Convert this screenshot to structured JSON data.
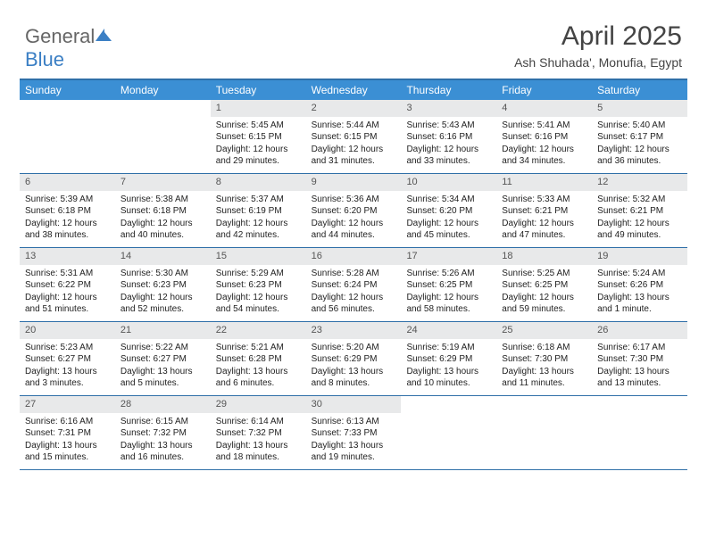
{
  "logo": {
    "part1": "General",
    "part2": "Blue"
  },
  "title": "April 2025",
  "subtitle": "Ash Shuhada', Monufia, Egypt",
  "colors": {
    "header_bg": "#3b8fd4",
    "header_text": "#ffffff",
    "border": "#2f6fa8",
    "daynum_bg": "#e8e9ea",
    "logo_blue": "#3b7fc4"
  },
  "day_headers": [
    "Sunday",
    "Monday",
    "Tuesday",
    "Wednesday",
    "Thursday",
    "Friday",
    "Saturday"
  ],
  "weeks": [
    [
      {
        "num": "",
        "lines": []
      },
      {
        "num": "",
        "lines": []
      },
      {
        "num": "1",
        "lines": [
          "Sunrise: 5:45 AM",
          "Sunset: 6:15 PM",
          "Daylight: 12 hours and 29 minutes."
        ]
      },
      {
        "num": "2",
        "lines": [
          "Sunrise: 5:44 AM",
          "Sunset: 6:15 PM",
          "Daylight: 12 hours and 31 minutes."
        ]
      },
      {
        "num": "3",
        "lines": [
          "Sunrise: 5:43 AM",
          "Sunset: 6:16 PM",
          "Daylight: 12 hours and 33 minutes."
        ]
      },
      {
        "num": "4",
        "lines": [
          "Sunrise: 5:41 AM",
          "Sunset: 6:16 PM",
          "Daylight: 12 hours and 34 minutes."
        ]
      },
      {
        "num": "5",
        "lines": [
          "Sunrise: 5:40 AM",
          "Sunset: 6:17 PM",
          "Daylight: 12 hours and 36 minutes."
        ]
      }
    ],
    [
      {
        "num": "6",
        "lines": [
          "Sunrise: 5:39 AM",
          "Sunset: 6:18 PM",
          "Daylight: 12 hours and 38 minutes."
        ]
      },
      {
        "num": "7",
        "lines": [
          "Sunrise: 5:38 AM",
          "Sunset: 6:18 PM",
          "Daylight: 12 hours and 40 minutes."
        ]
      },
      {
        "num": "8",
        "lines": [
          "Sunrise: 5:37 AM",
          "Sunset: 6:19 PM",
          "Daylight: 12 hours and 42 minutes."
        ]
      },
      {
        "num": "9",
        "lines": [
          "Sunrise: 5:36 AM",
          "Sunset: 6:20 PM",
          "Daylight: 12 hours and 44 minutes."
        ]
      },
      {
        "num": "10",
        "lines": [
          "Sunrise: 5:34 AM",
          "Sunset: 6:20 PM",
          "Daylight: 12 hours and 45 minutes."
        ]
      },
      {
        "num": "11",
        "lines": [
          "Sunrise: 5:33 AM",
          "Sunset: 6:21 PM",
          "Daylight: 12 hours and 47 minutes."
        ]
      },
      {
        "num": "12",
        "lines": [
          "Sunrise: 5:32 AM",
          "Sunset: 6:21 PM",
          "Daylight: 12 hours and 49 minutes."
        ]
      }
    ],
    [
      {
        "num": "13",
        "lines": [
          "Sunrise: 5:31 AM",
          "Sunset: 6:22 PM",
          "Daylight: 12 hours and 51 minutes."
        ]
      },
      {
        "num": "14",
        "lines": [
          "Sunrise: 5:30 AM",
          "Sunset: 6:23 PM",
          "Daylight: 12 hours and 52 minutes."
        ]
      },
      {
        "num": "15",
        "lines": [
          "Sunrise: 5:29 AM",
          "Sunset: 6:23 PM",
          "Daylight: 12 hours and 54 minutes."
        ]
      },
      {
        "num": "16",
        "lines": [
          "Sunrise: 5:28 AM",
          "Sunset: 6:24 PM",
          "Daylight: 12 hours and 56 minutes."
        ]
      },
      {
        "num": "17",
        "lines": [
          "Sunrise: 5:26 AM",
          "Sunset: 6:25 PM",
          "Daylight: 12 hours and 58 minutes."
        ]
      },
      {
        "num": "18",
        "lines": [
          "Sunrise: 5:25 AM",
          "Sunset: 6:25 PM",
          "Daylight: 12 hours and 59 minutes."
        ]
      },
      {
        "num": "19",
        "lines": [
          "Sunrise: 5:24 AM",
          "Sunset: 6:26 PM",
          "Daylight: 13 hours and 1 minute."
        ]
      }
    ],
    [
      {
        "num": "20",
        "lines": [
          "Sunrise: 5:23 AM",
          "Sunset: 6:27 PM",
          "Daylight: 13 hours and 3 minutes."
        ]
      },
      {
        "num": "21",
        "lines": [
          "Sunrise: 5:22 AM",
          "Sunset: 6:27 PM",
          "Daylight: 13 hours and 5 minutes."
        ]
      },
      {
        "num": "22",
        "lines": [
          "Sunrise: 5:21 AM",
          "Sunset: 6:28 PM",
          "Daylight: 13 hours and 6 minutes."
        ]
      },
      {
        "num": "23",
        "lines": [
          "Sunrise: 5:20 AM",
          "Sunset: 6:29 PM",
          "Daylight: 13 hours and 8 minutes."
        ]
      },
      {
        "num": "24",
        "lines": [
          "Sunrise: 5:19 AM",
          "Sunset: 6:29 PM",
          "Daylight: 13 hours and 10 minutes."
        ]
      },
      {
        "num": "25",
        "lines": [
          "Sunrise: 6:18 AM",
          "Sunset: 7:30 PM",
          "Daylight: 13 hours and 11 minutes."
        ]
      },
      {
        "num": "26",
        "lines": [
          "Sunrise: 6:17 AM",
          "Sunset: 7:30 PM",
          "Daylight: 13 hours and 13 minutes."
        ]
      }
    ],
    [
      {
        "num": "27",
        "lines": [
          "Sunrise: 6:16 AM",
          "Sunset: 7:31 PM",
          "Daylight: 13 hours and 15 minutes."
        ]
      },
      {
        "num": "28",
        "lines": [
          "Sunrise: 6:15 AM",
          "Sunset: 7:32 PM",
          "Daylight: 13 hours and 16 minutes."
        ]
      },
      {
        "num": "29",
        "lines": [
          "Sunrise: 6:14 AM",
          "Sunset: 7:32 PM",
          "Daylight: 13 hours and 18 minutes."
        ]
      },
      {
        "num": "30",
        "lines": [
          "Sunrise: 6:13 AM",
          "Sunset: 7:33 PM",
          "Daylight: 13 hours and 19 minutes."
        ]
      },
      {
        "num": "",
        "lines": []
      },
      {
        "num": "",
        "lines": []
      },
      {
        "num": "",
        "lines": []
      }
    ]
  ]
}
